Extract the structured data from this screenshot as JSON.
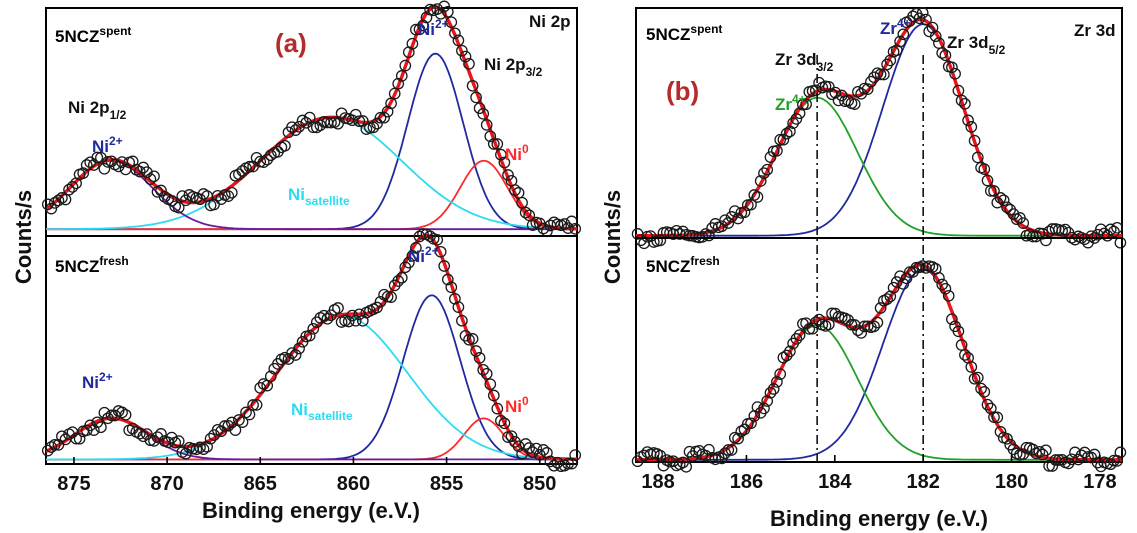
{
  "chart_data": [
    {
      "panel_label": "(a)",
      "type": "line",
      "region_label": "Ni 2p",
      "xlabel": "Binding energy (e.V.)",
      "ylabel": "Counts/s",
      "xlim": [
        876.5,
        848
      ],
      "x_reversed": true,
      "x_ticks": [
        875,
        870,
        865,
        860,
        855,
        850
      ],
      "x_tick_labels": [
        "875",
        "870",
        "865",
        "860",
        "855",
        "850"
      ],
      "colors": {
        "envelope": "#e8141a",
        "ni2p": "#1f2aa0",
        "ni0": "#ff2a2a",
        "satellite": "#2bdcf0",
        "ni_2p12": "#6a1b9a",
        "points": "#1a1a1a"
      },
      "subplots": [
        {
          "sample_base": "5NCZ",
          "sample_sup": "spent",
          "annotations": {
            "ni2_main_base": "Ni",
            "ni2_main_sup": "2+",
            "ni2_low_base": "Ni",
            "ni2_low_sup": "2+",
            "ni0_base": "Ni",
            "ni0_sup": "0",
            "sat_base": "Ni",
            "sat_sub": "satellite",
            "p32_base": "Ni 2p",
            "p32_sub": "3/2",
            "p12_base": "Ni 2p",
            "p12_sub": "1/2"
          },
          "baseline": 0.03,
          "series": [
            {
              "name": "Ni2+ (2p3/2)",
              "center": 855.6,
              "fwhm": 3.5,
              "height": 0.77
            },
            {
              "name": "Ni0",
              "center": 853.0,
              "fwhm": 3.0,
              "height": 0.3
            },
            {
              "name": "Ni satellite",
              "center": 861.2,
              "fwhm": 9.0,
              "height": 0.49
            },
            {
              "name": "Ni2+ (2p1/2)",
              "center": 873.0,
              "fwhm": 5.2,
              "height": 0.3
            }
          ]
        },
        {
          "sample_base": "5NCZ",
          "sample_sup": "fresh",
          "annotations": {
            "ni2_main_base": "Ni",
            "ni2_main_sup": "2+",
            "ni2_low_base": "Ni",
            "ni2_low_sup": "2+",
            "ni0_base": "Ni",
            "ni0_sup": "0",
            "sat_base": "Ni",
            "sat_sub": "satellite"
          },
          "baseline": 0.02,
          "series": [
            {
              "name": "Ni2+ (2p3/2)",
              "center": 855.8,
              "fwhm": 3.6,
              "height": 0.72
            },
            {
              "name": "Ni0",
              "center": 853.0,
              "fwhm": 2.5,
              "height": 0.18
            },
            {
              "name": "Ni satellite",
              "center": 860.6,
              "fwhm": 8.2,
              "height": 0.63
            },
            {
              "name": "Ni2+ (2p1/2)",
              "center": 873.0,
              "fwhm": 4.6,
              "height": 0.18
            }
          ]
        }
      ]
    },
    {
      "panel_label": "(b)",
      "type": "line",
      "region_label": "Zr 3d",
      "xlabel": "Binding energy (e.V.)",
      "ylabel": "Counts/s",
      "xlim": [
        188.5,
        177.5
      ],
      "x_reversed": true,
      "x_ticks": [
        188,
        186,
        184,
        182,
        180,
        178
      ],
      "x_tick_labels": [
        "188",
        "186",
        "184",
        "182",
        "180",
        "178"
      ],
      "reference_lines_x": [
        184.4,
        182.0
      ],
      "colors": {
        "envelope": "#e8141a",
        "zr52": "#1f2aa0",
        "zr32": "#22a02a",
        "fill": "#6a1b9a",
        "points": "#1a1a1a"
      },
      "subplots": [
        {
          "sample_base": "5NCZ",
          "sample_sup": "spent",
          "annotations": {
            "zr_a_base": "Zr",
            "zr_a_sup": "4+",
            "zr_b_base": "Zr",
            "zr_b_sup": "4+",
            "d32_base": "Zr 3d",
            "d32_sub": "3/2",
            "d52_base": "Zr 3d",
            "d52_sub": "5/2"
          },
          "baseline": 0.01,
          "series": [
            {
              "name": "Zr4+ 3d5/2",
              "center": 182.0,
              "fwhm": 2.15,
              "height": 0.92
            },
            {
              "name": "Zr4+ 3d3/2",
              "center": 184.4,
              "fwhm": 2.15,
              "height": 0.6
            }
          ]
        },
        {
          "sample_base": "5NCZ",
          "sample_sup": "fresh",
          "baseline": 0.01,
          "series": [
            {
              "name": "Zr4+ 3d5/2",
              "center": 182.0,
              "fwhm": 2.15,
              "height": 0.85
            },
            {
              "name": "Zr4+ 3d3/2",
              "center": 184.4,
              "fwhm": 2.15,
              "height": 0.6
            }
          ]
        }
      ]
    }
  ]
}
